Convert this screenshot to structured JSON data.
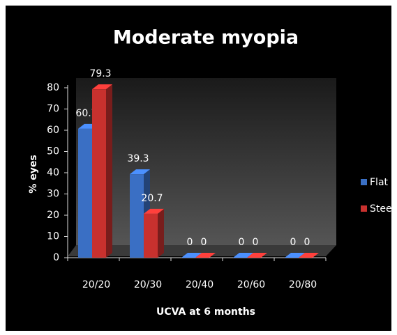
{
  "chart_data": {
    "type": "bar3d",
    "title": "Moderate myopia",
    "x_label": "UCVA at 6 months",
    "y_label": "% eyes",
    "categories": [
      "20/20",
      "20/30",
      "20/40",
      "20/60",
      "20/80"
    ],
    "series": [
      {
        "name": "Flat",
        "color": "#3a6fc4",
        "values": [
          60.7,
          39.3,
          0,
          0,
          0
        ]
      },
      {
        "name": "Steep",
        "color": "#c8312e",
        "values": [
          79.3,
          20.7,
          0,
          0,
          0
        ]
      }
    ],
    "ylim": [
      0,
      80
    ],
    "yticks": [
      0,
      10,
      20,
      30,
      40,
      50,
      60,
      70,
      80
    ],
    "legend": "right"
  }
}
